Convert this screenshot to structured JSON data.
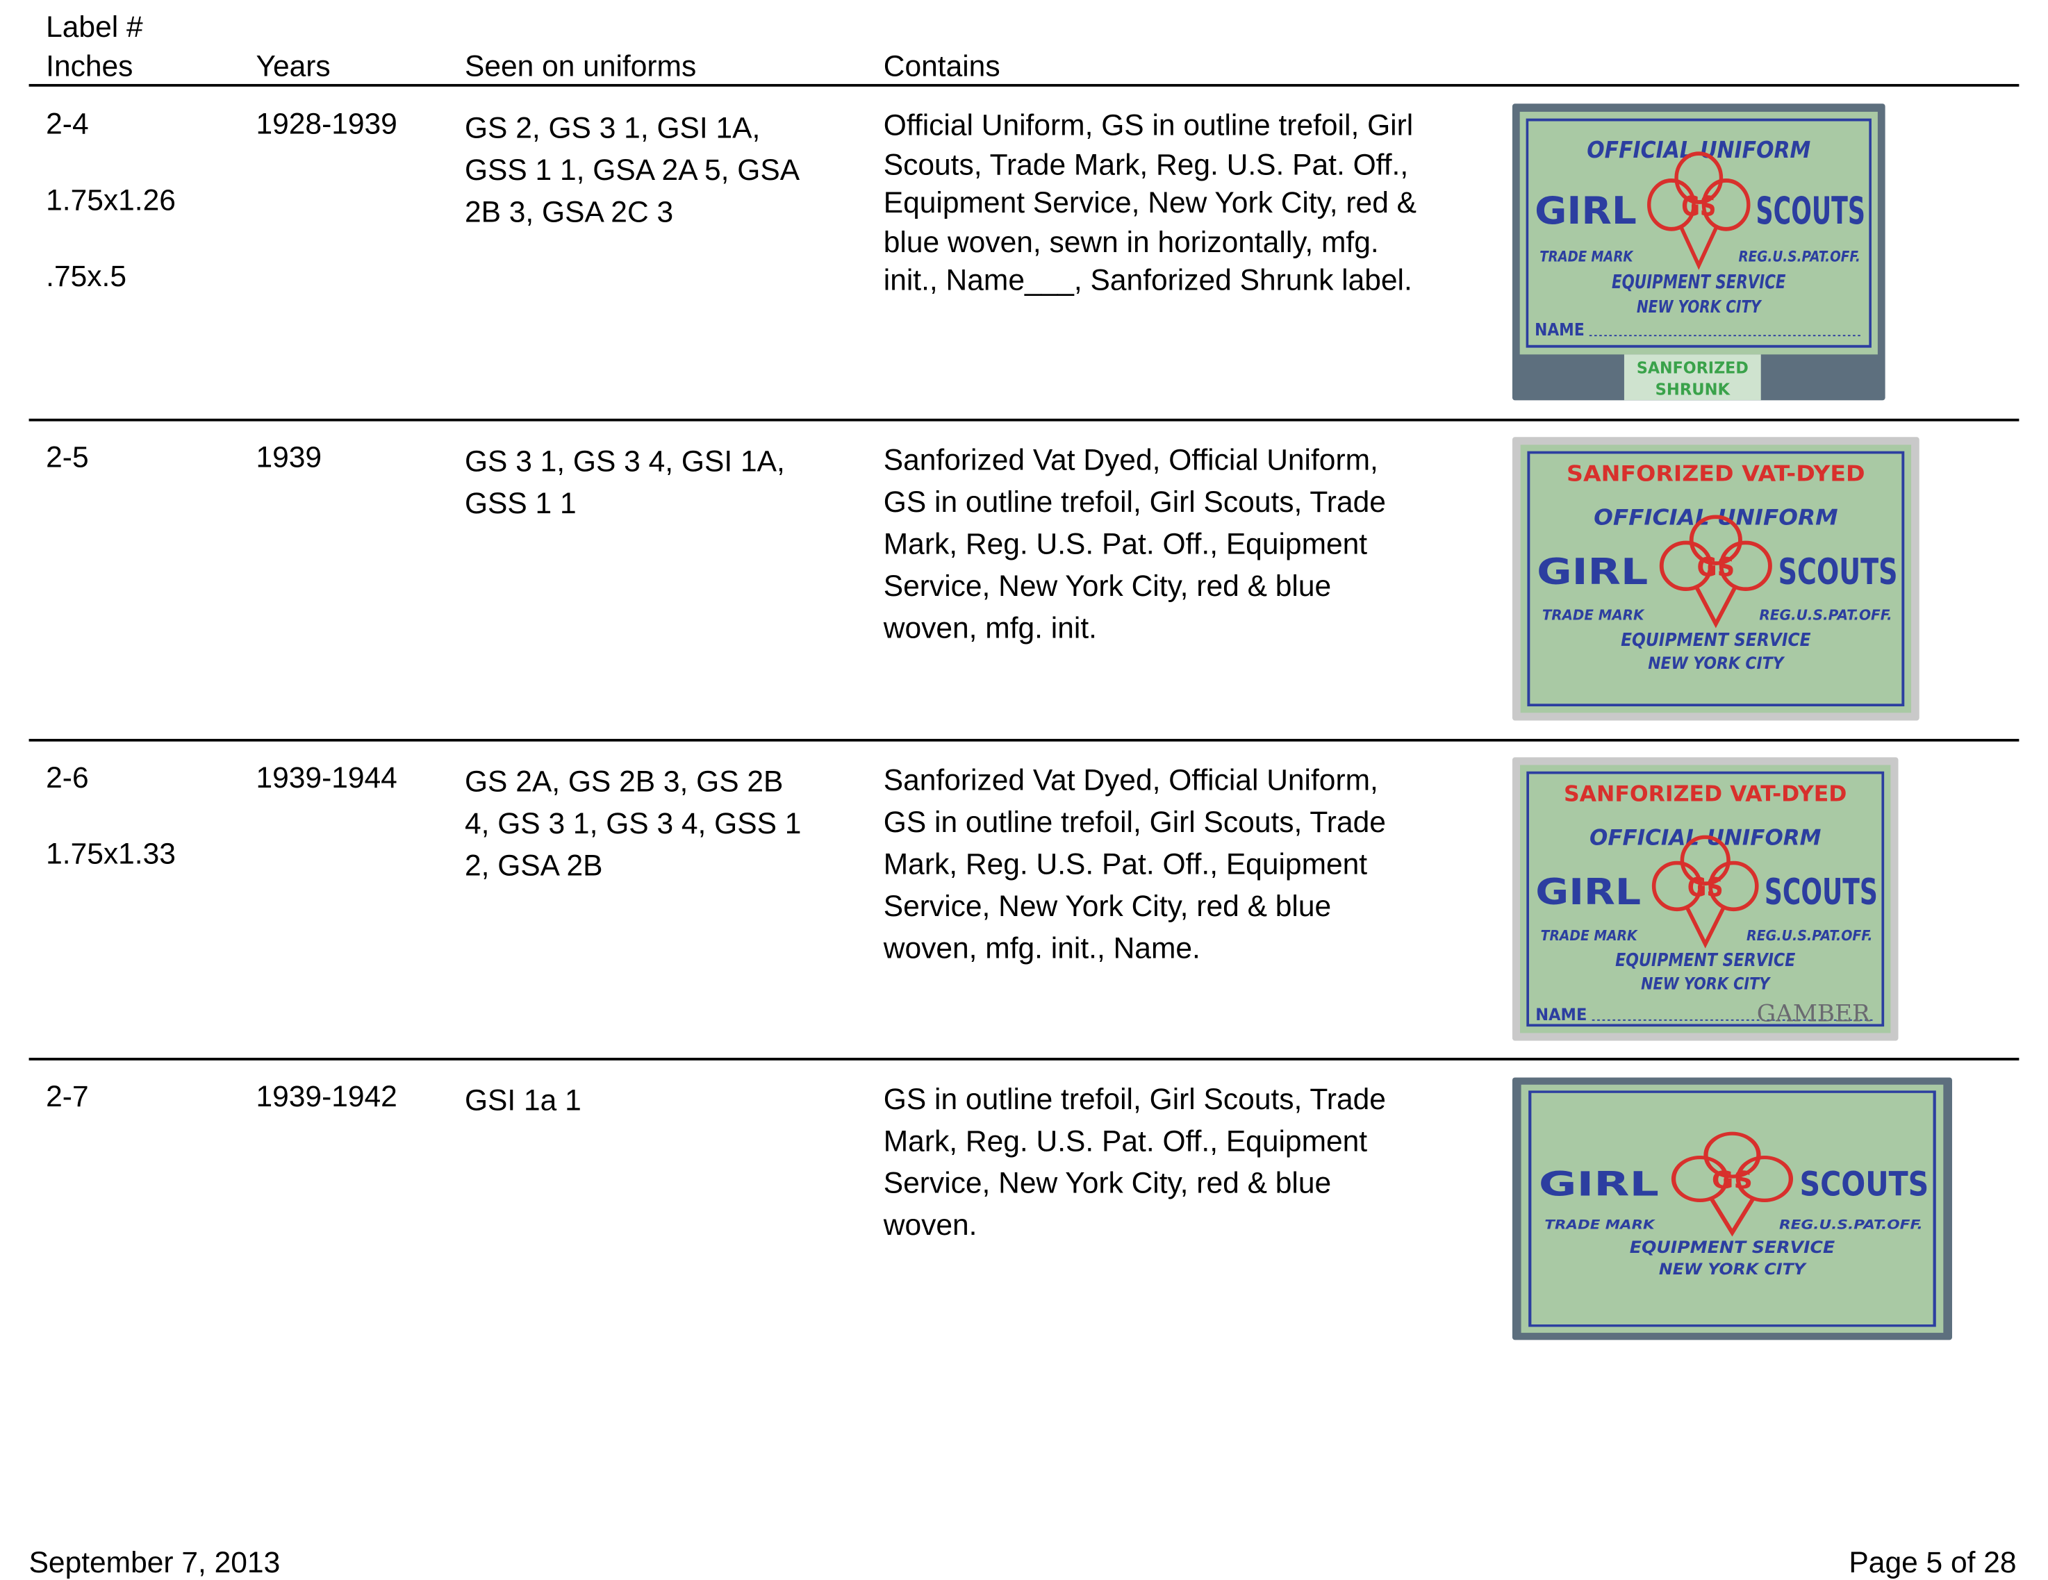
{
  "header": {
    "col1": [
      "Label #",
      "Inches"
    ],
    "col2": "Years",
    "col3": "Seen on uniforms",
    "col4": "Contains"
  },
  "rows": [
    {
      "label": [
        "2-4",
        "1.75x1.26",
        ".75x.5"
      ],
      "years": "1928-1939",
      "seen": [
        "GS 2, GS 3 1, GSI 1A,",
        "GSS 1 1, GSA 2A 5, GSA",
        "2B 3, GSA 2C 3"
      ],
      "contains": [
        "Official Uniform, GS in outline trefoil, Girl",
        "Scouts, Trade Mark, Reg. U.S. Pat. Off.,",
        "Equipment Service, New York City, red &",
        "blue woven, sewn in horizontally, mfg.",
        "init., Name___, Sanforized Shrunk label."
      ],
      "image": {
        "lettering": [
          "OFFICIAL UNIFORM",
          "GIRL",
          "GS",
          "SCOUTS",
          "TRADE MARK",
          "REG.U.S.PAT.OFF.",
          "EQUIPMENT SERVICE",
          "NEW YORK CITY",
          "NAME",
          "SANFORIZED",
          "SHRUNK"
        ]
      }
    },
    {
      "label": [
        "2-5"
      ],
      "years": "1939",
      "seen": [
        "GS 3 1, GS 3 4, GSI 1A,",
        "GSS 1 1"
      ],
      "contains": [
        "Sanforized Vat Dyed, Official Uniform,",
        "GS in outline trefoil, Girl Scouts, Trade",
        "Mark, Reg. U.S. Pat. Off., Equipment",
        "Service, New York City, red & blue",
        "woven, mfg. init."
      ],
      "image": {
        "lettering": [
          "SANFORIZED VAT-DYED",
          "OFFICIAL UNIFORM",
          "GIRL",
          "GS",
          "SCOUTS",
          "TRADE MARK",
          "REG.U.S.PAT.OFF.",
          "EQUIPMENT SERVICE",
          "NEW YORK CITY"
        ]
      }
    },
    {
      "label": [
        "2-6",
        "1.75x1.33"
      ],
      "years": "1939-1944",
      "seen": [
        "GS 2A, GS 2B 3, GS 2B",
        "4, GS 3 1, GS 3 4, GSS 1",
        "2, GSA 2B"
      ],
      "contains": [
        "Sanforized Vat Dyed, Official Uniform,",
        "GS in outline trefoil, Girl Scouts, Trade",
        "Mark, Reg. U.S. Pat. Off., Equipment",
        "Service, New York City, red & blue",
        "woven, mfg. init., Name."
      ],
      "image": {
        "lettering": [
          "SANFORIZED VAT-DYED",
          "OFFICIAL UNIFORM",
          "GIRL",
          "GS",
          "SCOUTS",
          "TRADE MARK",
          "REG.U.S.PAT.OFF.",
          "EQUIPMENT SERVICE",
          "NEW YORK CITY",
          "NAME",
          "GAMBER"
        ]
      }
    },
    {
      "label": [
        "2-7"
      ],
      "years": "1939-1942",
      "seen": [
        "GSI 1a 1"
      ],
      "contains": [
        "GS in outline trefoil, Girl Scouts, Trade",
        "Mark, Reg. U.S. Pat. Off., Equipment",
        "Service, New York City, red & blue",
        "woven."
      ],
      "image": {
        "lettering": [
          "GIRL",
          "GS",
          "SCOUTS",
          "TRADE MARK",
          "REG.U.S.PAT.OFF.",
          "EQUIPMENT SERVICE",
          "NEW YORK CITY"
        ]
      }
    }
  ],
  "footer": {
    "date": "September 7, 2013",
    "page": "Page 5 of 28"
  },
  "colors": {
    "label_bg": "#a9c9a4",
    "label_blue": "#2c3ea0",
    "label_red": "#d8302c",
    "denim": "#5d6f7e"
  }
}
